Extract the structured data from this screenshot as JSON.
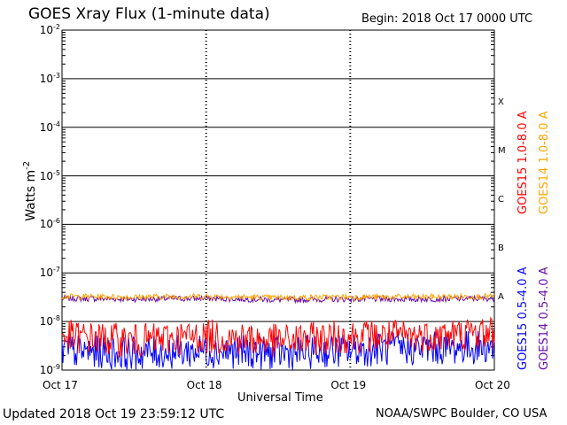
{
  "header": {
    "title": "GOES Xray Flux (1-minute data)",
    "begin_label": "Begin:  2018 Oct 17 0000 UTC"
  },
  "footer": {
    "updated": "Updated 2018 Oct 19 23:59:12 UTC",
    "credit": "NOAA/SWPC Boulder, CO USA"
  },
  "axes": {
    "xlabel": "Universal Time",
    "ylabel_base": "Watts m",
    "ylabel_exp": "-2",
    "y_tick_base": "10",
    "y_tick_exps": [
      "-2",
      "-3",
      "-4",
      "-5",
      "-6",
      "-7",
      "-8",
      "-9"
    ],
    "x_ticks": [
      "Oct 17",
      "Oct 18",
      "Oct 19",
      "Oct 20"
    ]
  },
  "flare_classes": [
    "X",
    "M",
    "C",
    "B",
    "A"
  ],
  "legend": {
    "right_top": [
      {
        "label": "GOES15 1.0-8.0 A",
        "color": "#ff0000"
      },
      {
        "label": "GOES14 1.0-8.0 A",
        "color": "#ffa500"
      }
    ],
    "right_bottom": [
      {
        "label": "GOES15 0.5-4.0 A",
        "color": "#0000ff"
      },
      {
        "label": "GOES14 0.5-4.0 A",
        "color": "#6a0dad"
      }
    ]
  },
  "chart_data": {
    "type": "line",
    "title": "GOES Xray Flux (1-minute data)",
    "xlabel": "Universal Time",
    "ylabel": "Watts m-2",
    "x": [
      "2018-10-17 00:00",
      "2018-10-17 12:00",
      "2018-10-18 00:00",
      "2018-10-18 12:00",
      "2018-10-19 00:00",
      "2018-10-19 12:00",
      "2018-10-20 00:00"
    ],
    "xlim": [
      "2018-10-17 00:00",
      "2018-10-20 00:00"
    ],
    "ylim": [
      1e-09,
      0.01
    ],
    "yscale": "log",
    "series": [
      {
        "name": "GOES15 1.0-8.0 A",
        "color": "#ff0000",
        "values": [
          5e-09,
          4e-09,
          5e-09,
          4e-09,
          5e-09,
          5e-09,
          6e-09
        ]
      },
      {
        "name": "GOES14 1.0-8.0 A",
        "color": "#ffa500",
        "values": [
          3.3e-08,
          3.2e-08,
          3.3e-08,
          3.1e-08,
          3.2e-08,
          3.2e-08,
          3.3e-08
        ]
      },
      {
        "name": "GOES15 0.5-4.0 A",
        "color": "#0000ff",
        "values": [
          2.5e-09,
          2.2e-09,
          2.5e-09,
          2.2e-09,
          2.6e-09,
          2.8e-09,
          3e-09
        ]
      },
      {
        "name": "GOES14 0.5-4.0 A",
        "color": "#6a0dad",
        "values": [
          3e-08,
          2.9e-08,
          3e-08,
          2.8e-08,
          2.9e-08,
          2.9e-08,
          3e-08
        ]
      }
    ],
    "grid": true,
    "legend_position": "right"
  }
}
